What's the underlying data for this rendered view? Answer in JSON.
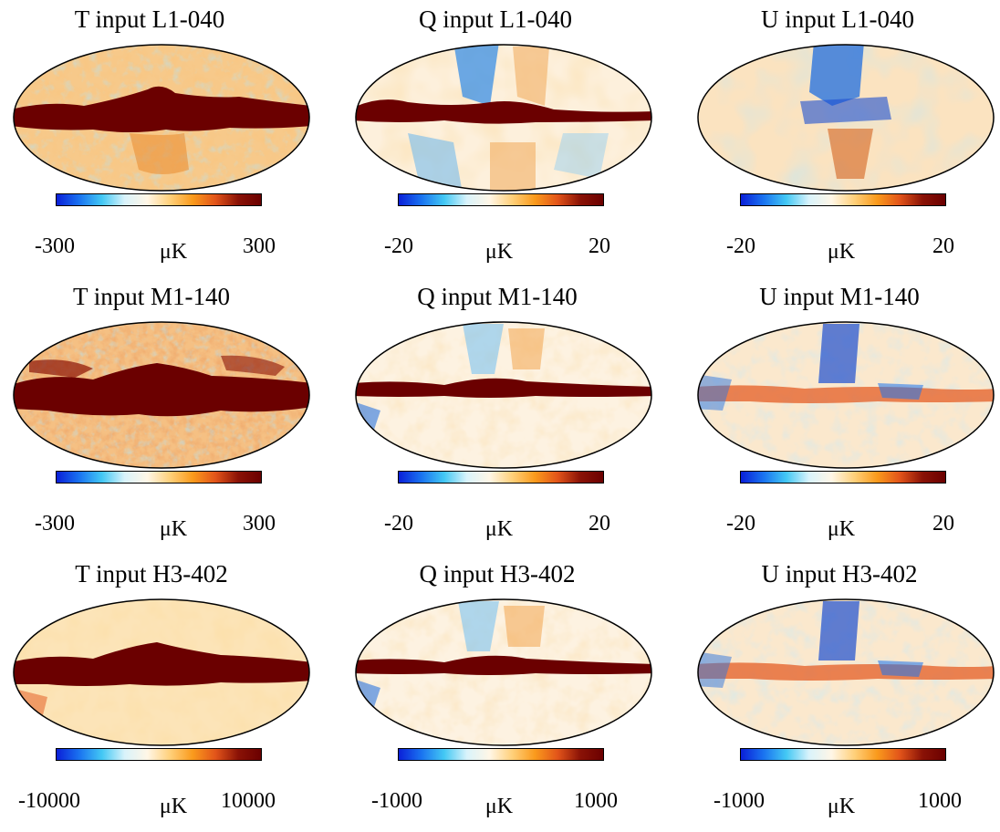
{
  "colorbar_colors": [
    "#0a1fd8",
    "#1a73f0",
    "#43c8f4",
    "#d9f3fb",
    "#fff6e6",
    "#ffd07a",
    "#fa9a1c",
    "#e2541a",
    "#8a1206",
    "#6b0000"
  ],
  "panels": [
    {
      "title": "T input L1-040",
      "min": "-300",
      "max": "300",
      "unit": "μK"
    },
    {
      "title": "Q input L1-040",
      "min": "-20",
      "max": "20",
      "unit": "μK"
    },
    {
      "title": "U input L1-040",
      "min": "-20",
      "max": "20",
      "unit": "μK"
    },
    {
      "title": "T input M1-140",
      "min": "-300",
      "max": "300",
      "unit": "μK"
    },
    {
      "title": "Q input M1-140",
      "min": "-20",
      "max": "20",
      "unit": "μK"
    },
    {
      "title": "U input M1-140",
      "min": "-20",
      "max": "20",
      "unit": "μK"
    },
    {
      "title": "T input H3-402",
      "min": "-10000",
      "max": "10000",
      "unit": "μK"
    },
    {
      "title": "Q input H3-402",
      "min": "-1000",
      "max": "1000",
      "unit": "μK"
    },
    {
      "title": "U input H3-402",
      "min": "-1000",
      "max": "1000",
      "unit": "μK"
    }
  ]
}
